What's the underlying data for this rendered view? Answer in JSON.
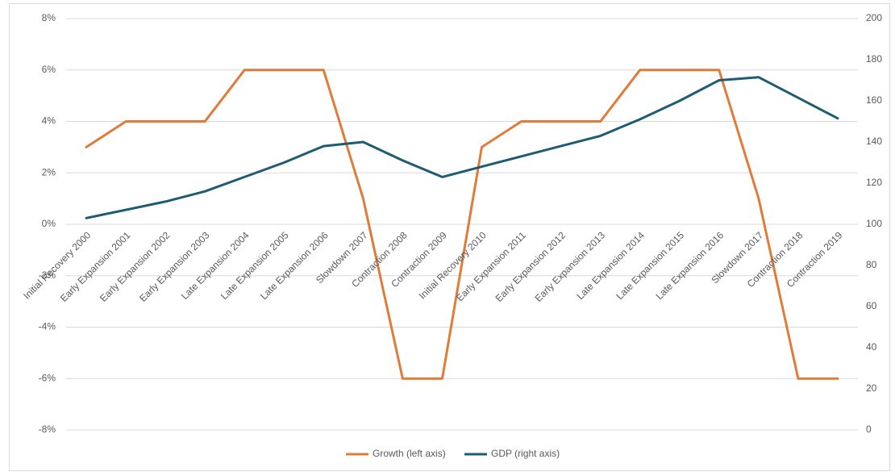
{
  "chart_data": {
    "type": "line",
    "title": "",
    "categories": [
      "Initial Recovery 2000",
      "Early Expansion 2001",
      "Early Expansion 2002",
      "Early Expansion 2003",
      "Late Expansion 2004",
      "Late Expansion 2005",
      "Late Expansion 2006",
      "Slowdown 2007",
      "Contraction 2008",
      "Contraction 2009",
      "Initial Recovery 2010",
      "Early Expansion 2011",
      "Early Expansion 2012",
      "Early Expansion 2013",
      "Late Expansion 2014",
      "Late Expansion 2015",
      "Late Expansion 2016",
      "Slowdown 2017",
      "Contraction 2018",
      "Contraction 2019"
    ],
    "series": [
      {
        "name": "Growth (left axis)",
        "axis": "left",
        "color": "#E07B39",
        "values": [
          3,
          4,
          4,
          4,
          6,
          6,
          6,
          1,
          -6,
          -6,
          3,
          4,
          4,
          4,
          6,
          6,
          6,
          1,
          -6,
          -6
        ]
      },
      {
        "name": "GDP (right axis)",
        "axis": "right",
        "color": "#1F5C73",
        "values": [
          103,
          107,
          111,
          116,
          123,
          130,
          138,
          140,
          131,
          123,
          128,
          133,
          138,
          143,
          151,
          160,
          170,
          171.5,
          161.5,
          151.5
        ]
      }
    ],
    "left_axis": {
      "min": -8,
      "max": 8,
      "step": 2,
      "tick_labels": [
        "-8%",
        "-6%",
        "-4%",
        "-2%",
        "0%",
        "2%",
        "4%",
        "6%",
        "8%"
      ],
      "negative_color": "#C00000",
      "positive_color": "#595959"
    },
    "right_axis": {
      "min": 0,
      "max": 200,
      "step": 20,
      "tick_labels": [
        "0",
        "20",
        "40",
        "60",
        "80",
        "100",
        "120",
        "140",
        "160",
        "180",
        "200"
      ]
    },
    "grid": true,
    "legend_position": "bottom-center"
  }
}
